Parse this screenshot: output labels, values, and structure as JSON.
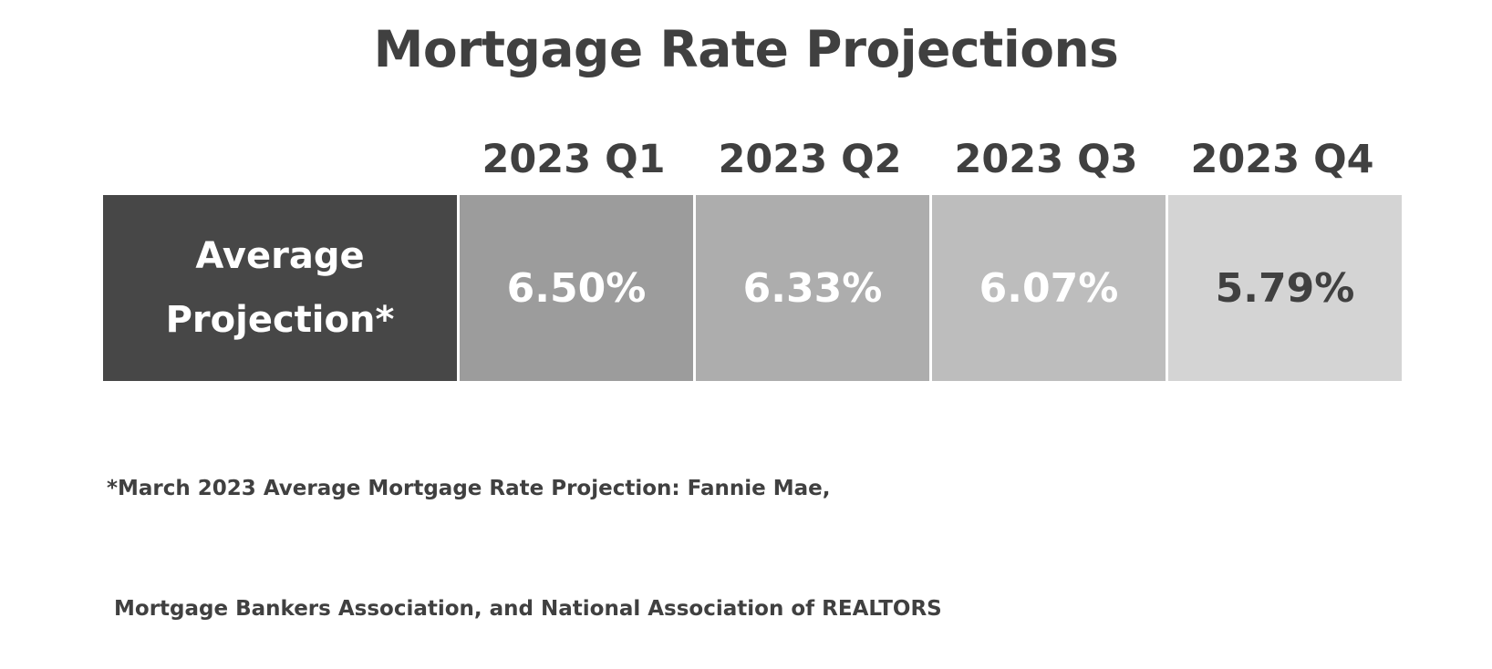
{
  "chart_data": {
    "type": "table",
    "title": "Mortgage Rate Projections",
    "columns": [
      "2023 Q1",
      "2023 Q2",
      "2023 Q3",
      "2023 Q4"
    ],
    "row_label_line1": "Average",
    "row_label_line2": "Projection*",
    "values": [
      "6.50%",
      "6.33%",
      "6.07%",
      "5.79%"
    ],
    "cell_colors": [
      "#9c9c9c",
      "#adadad",
      "#bdbdbd",
      "#d4d4d4"
    ],
    "cell_text_colors": [
      "#ffffff",
      "#ffffff",
      "#ffffff",
      "#404040"
    ],
    "row_header_color": "#474747",
    "footnote_line1": "*March 2023 Average Mortgage Rate Projection: Fannie Mae,",
    "footnote_line2": " Mortgage Bankers Association, and National Association of REALTORS"
  }
}
